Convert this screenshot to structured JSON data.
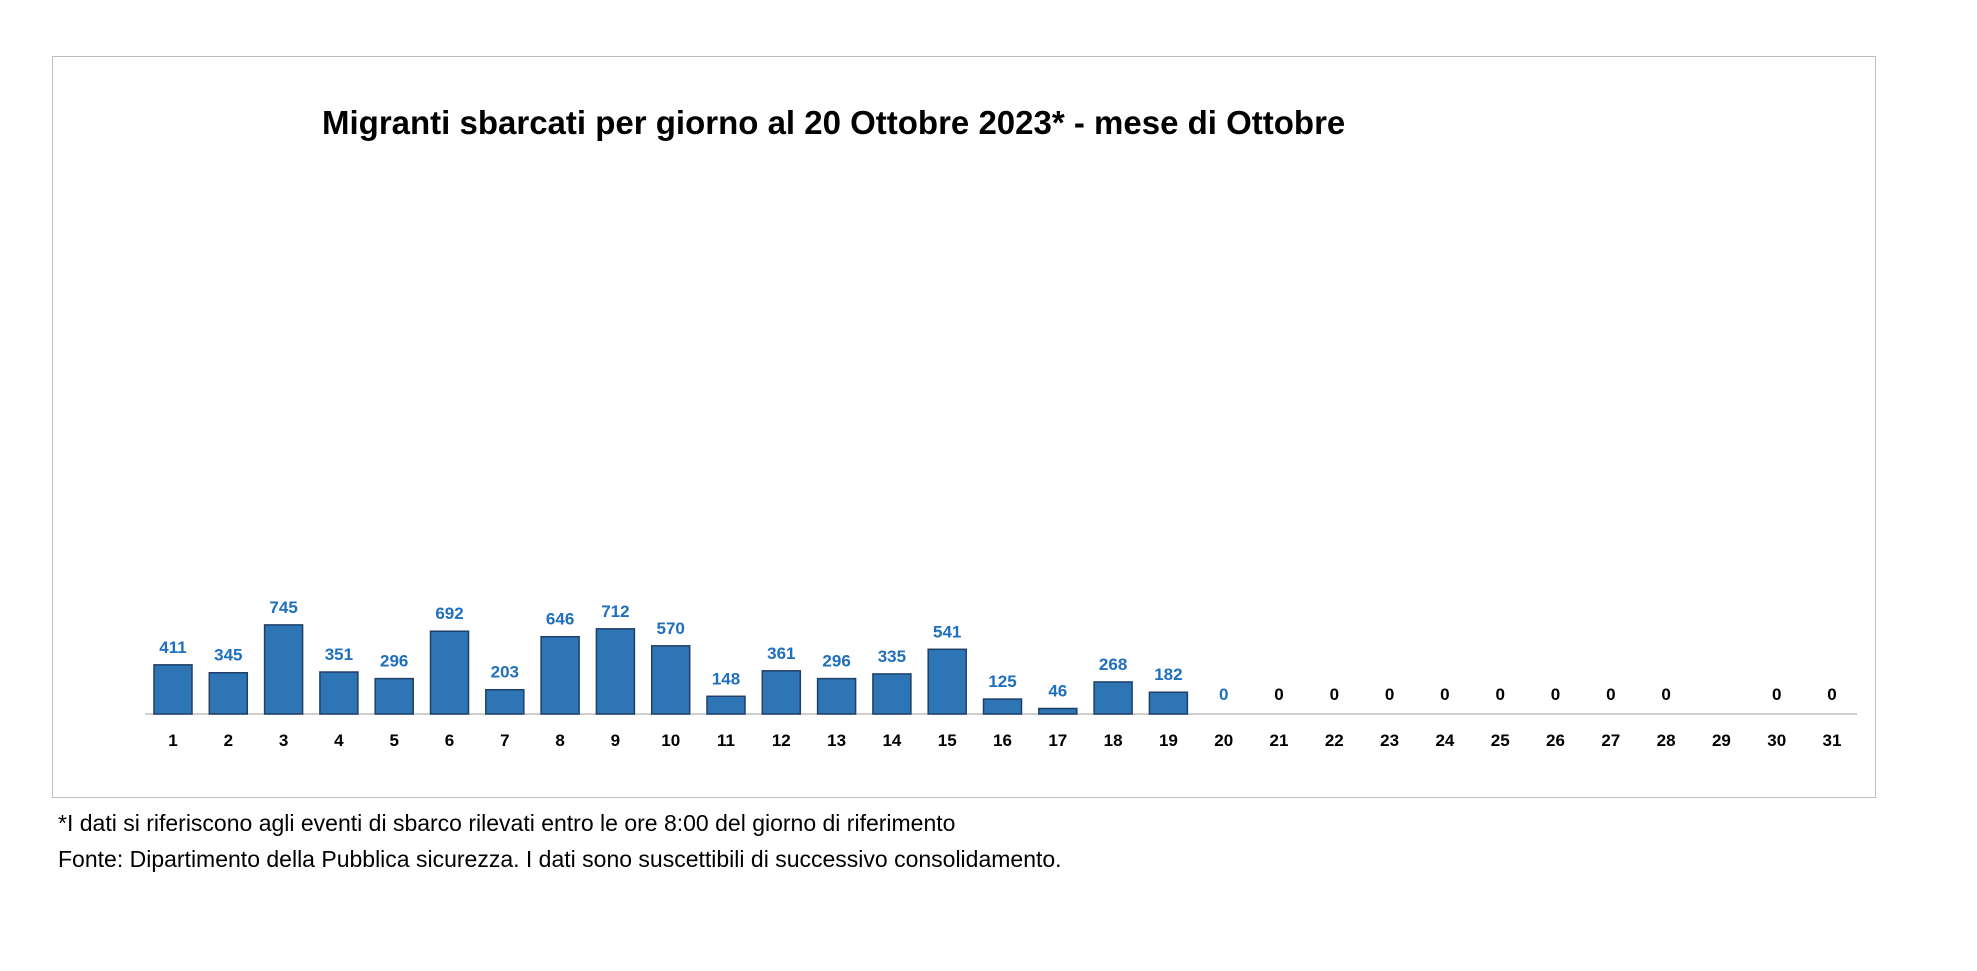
{
  "chart_data": {
    "type": "bar",
    "title": "Migranti sbarcati per giorno al 20 Ottobre 2023* - mese di Ottobre",
    "xlabel": "",
    "ylabel": "",
    "ylim": [
      0,
      5000
    ],
    "grid": false,
    "legend": "none",
    "categories": [
      "1",
      "2",
      "3",
      "4",
      "5",
      "6",
      "7",
      "8",
      "9",
      "10",
      "11",
      "12",
      "13",
      "14",
      "15",
      "16",
      "17",
      "18",
      "19",
      "20",
      "21",
      "22",
      "23",
      "24",
      "25",
      "26",
      "27",
      "28",
      "29",
      "30",
      "31"
    ],
    "values": [
      411,
      345,
      745,
      351,
      296,
      692,
      203,
      646,
      712,
      570,
      148,
      361,
      296,
      335,
      541,
      125,
      46,
      268,
      182,
      0,
      0,
      0,
      0,
      0,
      0,
      0,
      0,
      0,
      null,
      0,
      0
    ],
    "value_labels": [
      "411",
      "345",
      "745",
      "351",
      "296",
      "692",
      "203",
      "646",
      "712",
      "570",
      "148",
      "361",
      "296",
      "335",
      "541",
      "125",
      "46",
      "268",
      "182",
      "0",
      "0",
      "0",
      "0",
      "0",
      "0",
      "0",
      "0",
      "0",
      "",
      "0",
      "0"
    ],
    "colors": {
      "bar": "#2e75b6",
      "bar_edge": "#1f3f66",
      "label_data": "#1f6fbf",
      "label_zero": "#000000",
      "axis": "#bfbfbf"
    }
  },
  "footnote": "*I dati si riferiscono agli eventi di sbarco rilevati entro le ore 8:00 del giorno di riferimento",
  "source": "Fonte: Dipartimento della Pubblica sicurezza. I dati sono suscettibili di successivo consolidamento."
}
